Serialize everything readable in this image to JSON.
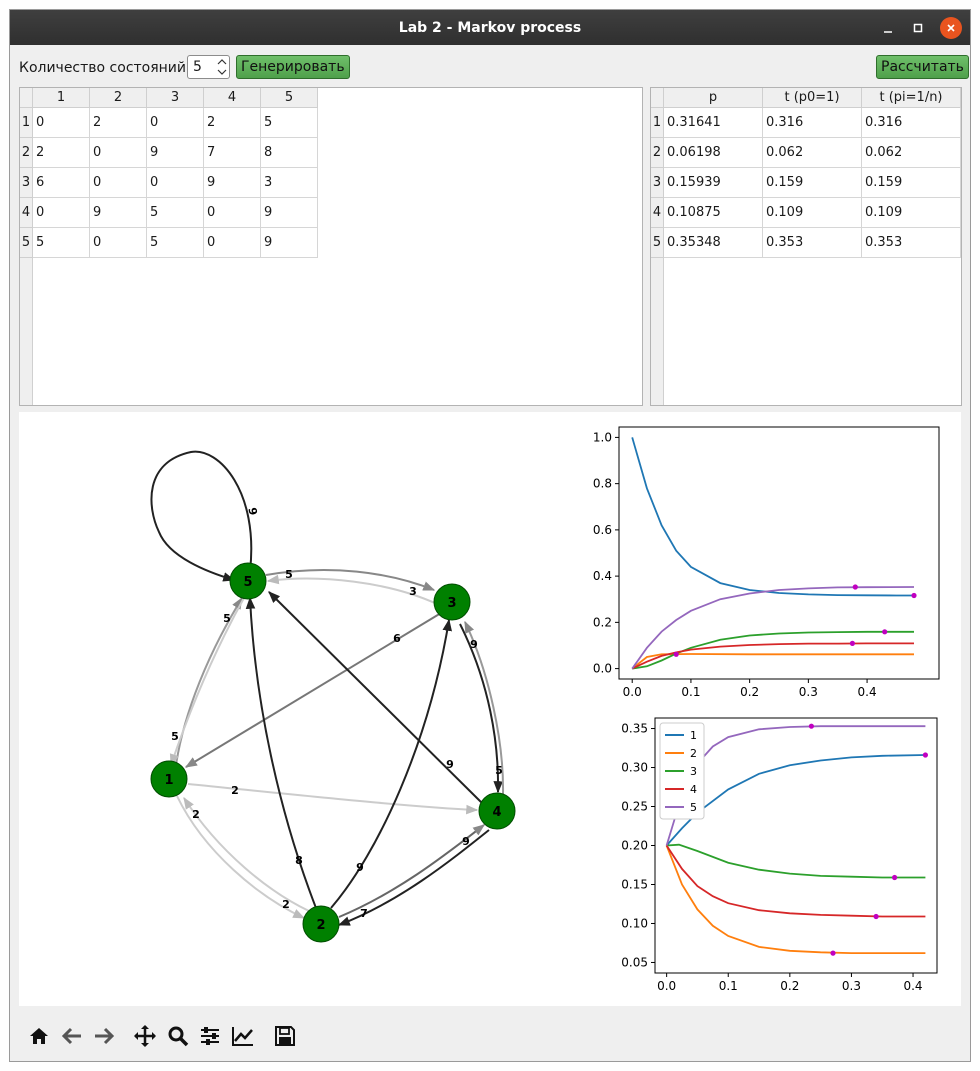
{
  "window": {
    "title": "Lab 2 - Markov process"
  },
  "controls": {
    "states_label": "Количество состояний",
    "states_value": "5",
    "generate_label": "Генерировать",
    "calculate_label": "Рассчитать"
  },
  "matrix_table": {
    "columns": [
      "1",
      "2",
      "3",
      "4",
      "5"
    ],
    "row_headers": [
      "1",
      "2",
      "3",
      "4",
      "5"
    ],
    "rows": [
      [
        "0",
        "2",
        "0",
        "2",
        "5"
      ],
      [
        "2",
        "0",
        "9",
        "7",
        "8"
      ],
      [
        "6",
        "0",
        "0",
        "9",
        "3"
      ],
      [
        "0",
        "9",
        "5",
        "0",
        "9"
      ],
      [
        "5",
        "0",
        "5",
        "0",
        "9"
      ]
    ]
  },
  "result_table": {
    "columns": [
      "p",
      "t (p0=1)",
      "t (pi=1/n)"
    ],
    "row_headers": [
      "1",
      "2",
      "3",
      "4",
      "5"
    ],
    "rows": [
      [
        "0.31641",
        "0.316",
        "0.316"
      ],
      [
        "0.06198",
        "0.062",
        "0.062"
      ],
      [
        "0.15939",
        "0.159",
        "0.159"
      ],
      [
        "0.10875",
        "0.109",
        "0.109"
      ],
      [
        "0.35348",
        "0.353",
        "0.353"
      ]
    ]
  },
  "graph": {
    "nodes": [
      "1",
      "2",
      "3",
      "4",
      "5"
    ],
    "node_color": "#008000",
    "edge_weights": [
      "9",
      "5",
      "3",
      "6",
      "5",
      "5",
      "9",
      "5",
      "2",
      "2",
      "2",
      "9",
      "8",
      "9",
      "7",
      "9"
    ]
  },
  "chart_data": [
    {
      "type": "line",
      "title": "",
      "xlim": [
        0.0,
        0.5
      ],
      "ylim": [
        0.0,
        1.0
      ],
      "xticks": [
        "0.0",
        "0.1",
        "0.2",
        "0.3",
        "0.4"
      ],
      "yticks": [
        "0.0",
        "0.2",
        "0.4",
        "0.6",
        "0.8",
        "1.0"
      ],
      "grid": false,
      "series": [
        {
          "color": "#1f77b4",
          "x": [
            0.0,
            0.025,
            0.05,
            0.075,
            0.1,
            0.15,
            0.2,
            0.25,
            0.3,
            0.35,
            0.4,
            0.45,
            0.48
          ],
          "y": [
            1.0,
            0.78,
            0.62,
            0.51,
            0.44,
            0.37,
            0.34,
            0.327,
            0.321,
            0.318,
            0.317,
            0.316,
            0.316
          ]
        },
        {
          "color": "#ff7f0e",
          "x": [
            0.0,
            0.025,
            0.05,
            0.1,
            0.2,
            0.3,
            0.4,
            0.48
          ],
          "y": [
            0.0,
            0.05,
            0.062,
            0.063,
            0.062,
            0.062,
            0.062,
            0.062
          ]
        },
        {
          "color": "#2ca02c",
          "x": [
            0.0,
            0.025,
            0.05,
            0.075,
            0.1,
            0.15,
            0.2,
            0.25,
            0.3,
            0.35,
            0.4,
            0.48
          ],
          "y": [
            0.0,
            0.01,
            0.035,
            0.065,
            0.09,
            0.125,
            0.143,
            0.152,
            0.156,
            0.158,
            0.159,
            0.159
          ]
        },
        {
          "color": "#d62728",
          "x": [
            0.0,
            0.025,
            0.05,
            0.075,
            0.1,
            0.15,
            0.2,
            0.25,
            0.3,
            0.35,
            0.4,
            0.48
          ],
          "y": [
            0.0,
            0.03,
            0.055,
            0.07,
            0.082,
            0.095,
            0.102,
            0.106,
            0.108,
            0.108,
            0.109,
            0.109
          ]
        },
        {
          "color": "#9467bd",
          "x": [
            0.0,
            0.025,
            0.05,
            0.075,
            0.1,
            0.15,
            0.2,
            0.25,
            0.3,
            0.35,
            0.4,
            0.48
          ],
          "y": [
            0.0,
            0.09,
            0.16,
            0.21,
            0.25,
            0.3,
            0.325,
            0.34,
            0.347,
            0.351,
            0.352,
            0.353
          ]
        }
      ],
      "markers": {
        "color": "#c000c0",
        "points": [
          [
            0.075,
            0.062
          ],
          [
            0.38,
            0.353
          ],
          [
            0.43,
            0.159
          ],
          [
            0.375,
            0.109
          ],
          [
            0.48,
            0.316
          ]
        ]
      }
    },
    {
      "type": "line",
      "title": "",
      "xlim": [
        0.0,
        0.42
      ],
      "ylim": [
        0.05,
        0.35
      ],
      "xticks": [
        "0.0",
        "0.1",
        "0.2",
        "0.3",
        "0.4"
      ],
      "yticks": [
        "0.05",
        "0.10",
        "0.15",
        "0.20",
        "0.25",
        "0.30",
        "0.35"
      ],
      "grid": false,
      "legend": {
        "position": "top-left",
        "entries": [
          "1",
          "2",
          "3",
          "4",
          "5"
        ]
      },
      "series": [
        {
          "name": "1",
          "color": "#1f77b4",
          "x": [
            0.0,
            0.025,
            0.05,
            0.1,
            0.15,
            0.2,
            0.25,
            0.3,
            0.35,
            0.42
          ],
          "y": [
            0.2,
            0.222,
            0.242,
            0.272,
            0.292,
            0.303,
            0.309,
            0.313,
            0.315,
            0.316
          ]
        },
        {
          "name": "2",
          "color": "#ff7f0e",
          "x": [
            0.0,
            0.025,
            0.05,
            0.075,
            0.1,
            0.15,
            0.2,
            0.25,
            0.3,
            0.35,
            0.42
          ],
          "y": [
            0.2,
            0.15,
            0.118,
            0.097,
            0.084,
            0.07,
            0.065,
            0.063,
            0.062,
            0.062,
            0.062
          ]
        },
        {
          "name": "3",
          "color": "#2ca02c",
          "x": [
            0.0,
            0.02,
            0.05,
            0.1,
            0.15,
            0.2,
            0.25,
            0.3,
            0.35,
            0.42
          ],
          "y": [
            0.2,
            0.201,
            0.193,
            0.178,
            0.169,
            0.164,
            0.161,
            0.16,
            0.159,
            0.159
          ]
        },
        {
          "name": "4",
          "color": "#d62728",
          "x": [
            0.0,
            0.025,
            0.05,
            0.075,
            0.1,
            0.15,
            0.2,
            0.25,
            0.3,
            0.35,
            0.42
          ],
          "y": [
            0.2,
            0.17,
            0.148,
            0.135,
            0.126,
            0.117,
            0.113,
            0.111,
            0.11,
            0.109,
            0.109
          ]
        },
        {
          "name": "5",
          "color": "#9467bd",
          "x": [
            0.0,
            0.025,
            0.05,
            0.075,
            0.1,
            0.15,
            0.2,
            0.25,
            0.3,
            0.42
          ],
          "y": [
            0.2,
            0.265,
            0.305,
            0.327,
            0.339,
            0.349,
            0.352,
            0.353,
            0.353,
            0.353
          ]
        }
      ],
      "markers": {
        "color": "#c000c0",
        "points": [
          [
            0.235,
            0.353
          ],
          [
            0.27,
            0.062
          ],
          [
            0.34,
            0.109
          ],
          [
            0.37,
            0.159
          ],
          [
            0.42,
            0.316
          ]
        ]
      }
    }
  ],
  "toolbar": {
    "icons": [
      "home-icon",
      "back-icon",
      "forward-icon",
      "pan-icon",
      "zoom-icon",
      "configure-subplots-icon",
      "edit-axis-icon",
      "save-icon"
    ]
  }
}
